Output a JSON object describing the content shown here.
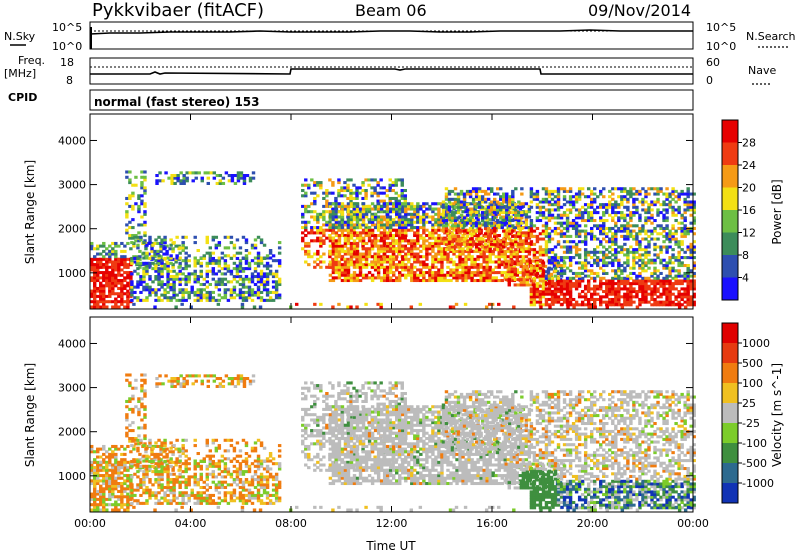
{
  "header": {
    "radar": "Pykkvibaer (fitACF)",
    "beam": "Beam 06",
    "date": "09/Nov/2014"
  },
  "noise_panel": {
    "left_label": "N.Sky",
    "left_ticks": [
      "10^5",
      "10^0"
    ],
    "right_ticks": [
      "10^5",
      "10^0"
    ],
    "right_label": "N.Search"
  },
  "freq_panel": {
    "left_label_top": "Freq.",
    "left_label_unit": "[MHz]",
    "left_ticks": [
      "18",
      "8"
    ],
    "right_ticks": [
      "60",
      "0"
    ],
    "right_label": "Nave"
  },
  "cpid": {
    "label": "CPID",
    "text": "normal (fast stereo) 153"
  },
  "time_axis": {
    "ticks": [
      "00:00",
      "04:00",
      "08:00",
      "12:00",
      "16:00",
      "20:00",
      "00:00"
    ],
    "label": "Time UT"
  },
  "range_axis": {
    "label": "Slant Range [km]",
    "ticks": [
      "1000",
      "2000",
      "3000",
      "4000"
    ]
  },
  "power_scale": {
    "label": "Power [dB]",
    "ticks": [
      "4",
      "8",
      "12",
      "16",
      "20",
      "24",
      "28"
    ],
    "colors": [
      "#1a10ff",
      "#2e4fb0",
      "#3c8c5a",
      "#6dbf44",
      "#f3e014",
      "#f59a16",
      "#ef3b12",
      "#e60000"
    ]
  },
  "velocity_scale": {
    "label": "Velocity [m s^-1]",
    "ticks": [
      "1000",
      "500",
      "100",
      "25",
      "-25",
      "-100",
      "-500",
      "-1000"
    ],
    "colors": [
      "#1133b5",
      "#2d6a8f",
      "#3f8f3f",
      "#7ccc2a",
      "#bcbcbc",
      "#f0c020",
      "#f07c10",
      "#e63a10",
      "#e00000"
    ]
  },
  "chart_data": {
    "type": "heatmap",
    "panels": [
      "power",
      "velocity"
    ],
    "x_range_hours": [
      0,
      24
    ],
    "y_range_km": [
      180,
      4600
    ]
  }
}
